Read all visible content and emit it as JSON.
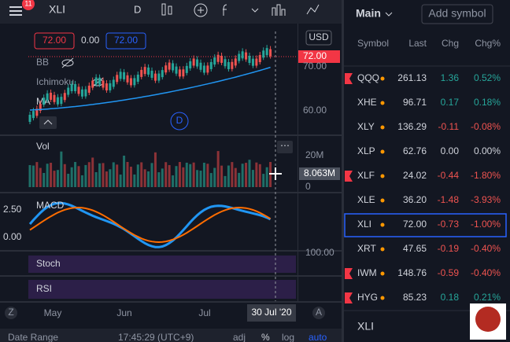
{
  "toolbar": {
    "badge": "11",
    "symbol": "XLI",
    "interval": "D"
  },
  "chart": {
    "open_label": "72.00",
    "change_label": "0.00",
    "close_label": "72.00",
    "currency": "USD",
    "price_axis": [
      "70.00",
      "60.00"
    ],
    "last_price": "72.00",
    "indicators": [
      "BB",
      "Ichimoku",
      "MA"
    ],
    "marker": "D",
    "volume": {
      "title": "Vol",
      "axis": [
        "20M",
        "0"
      ],
      "current": "8.063M"
    },
    "macd": {
      "title": "MACD",
      "axis": [
        "2.50",
        "0.00"
      ]
    },
    "stoch": {
      "title": "Stoch",
      "axis": "100.00"
    },
    "rsi": {
      "title": "RSI"
    },
    "months": [
      "May",
      "Jun",
      "Jul"
    ],
    "cursor_date": "30 Jul '20",
    "left_button": "Z",
    "right_button": "A"
  },
  "watchlist": {
    "title": "Main",
    "add": "Add symbol",
    "columns": [
      "Symbol",
      "Last",
      "Chg",
      "Chg%"
    ],
    "rows": [
      {
        "symbol": "QQQ",
        "last": "261.13",
        "chg": "1.36",
        "chgp": "0.52%",
        "flag": true
      },
      {
        "symbol": "XHE",
        "last": "96.71",
        "chg": "0.17",
        "chgp": "0.18%",
        "flag": false
      },
      {
        "symbol": "XLY",
        "last": "136.29",
        "chg": "-0.11",
        "chgp": "-0.08%",
        "flag": false
      },
      {
        "symbol": "XLP",
        "last": "62.76",
        "chg": "0.00",
        "chgp": "0.00%",
        "flag": false
      },
      {
        "symbol": "XLF",
        "last": "24.02",
        "chg": "-0.44",
        "chgp": "-1.80%",
        "flag": true
      },
      {
        "symbol": "XLE",
        "last": "36.20",
        "chg": "-1.48",
        "chgp": "-3.93%",
        "flag": false
      },
      {
        "symbol": "XLI",
        "last": "72.00",
        "chg": "-0.73",
        "chgp": "-1.00%",
        "flag": false
      },
      {
        "symbol": "XRT",
        "last": "47.65",
        "chg": "-0.19",
        "chgp": "-0.40%",
        "flag": false
      },
      {
        "symbol": "IWM",
        "last": "148.76",
        "chg": "-0.59",
        "chgp": "-0.40%",
        "flag": true
      },
      {
        "symbol": "HYG",
        "last": "85.23",
        "chg": "0.18",
        "chgp": "0.21%",
        "flag": true
      }
    ],
    "selected": "XLI",
    "detail": "XLI"
  },
  "footer": {
    "date_range": "Date Range",
    "time": "17:45:29 (UTC+9)",
    "buttons": [
      "adj",
      "%",
      "log",
      "auto"
    ]
  }
}
